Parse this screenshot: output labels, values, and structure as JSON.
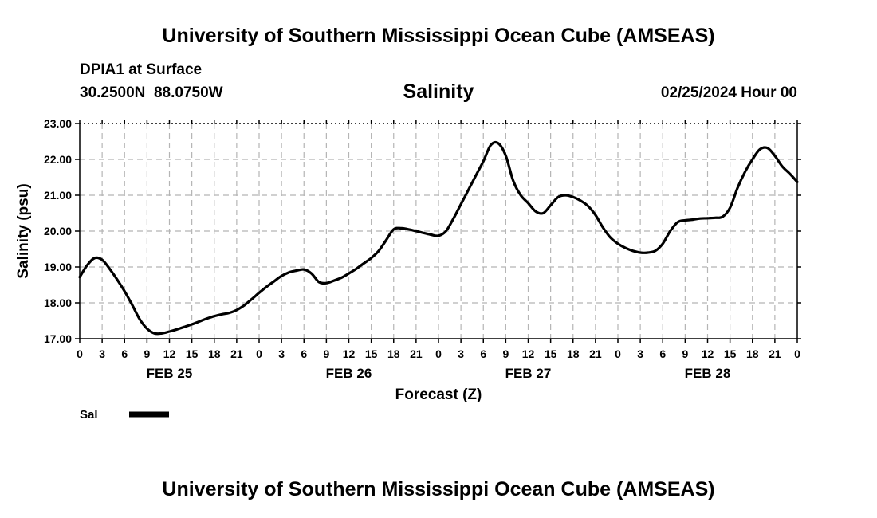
{
  "header": {
    "title": "University of Southern Mississippi Ocean Cube (AMSEAS)",
    "station": "DPIA1 at Surface",
    "latitude": "30.2500N",
    "longitude": "88.0750W",
    "run_time": "02/25/2024 Hour 00"
  },
  "footer": {
    "title": "University of Southern Mississippi Ocean Cube (AMSEAS)"
  },
  "chart_data": {
    "type": "line",
    "title": "Salinity",
    "xlabel": "Forecast (Z)",
    "ylabel": "Salinity (psu)",
    "x_unit": "hours from 02/25/2024 00Z",
    "xlim": [
      0,
      96
    ],
    "ylim": [
      17.0,
      23.0
    ],
    "y_ticks": [
      "17.00",
      "18.00",
      "19.00",
      "20.00",
      "21.00",
      "22.00",
      "23.00"
    ],
    "x_tick_hours": [
      0,
      3,
      6,
      9,
      12,
      15,
      18,
      21,
      24,
      27,
      30,
      33,
      36,
      39,
      42,
      45,
      48,
      51,
      54,
      57,
      60,
      63,
      66,
      69,
      72,
      75,
      78,
      81,
      84,
      87,
      90,
      93,
      96
    ],
    "x_tick_labels": [
      "0",
      "3",
      "6",
      "9",
      "12",
      "15",
      "18",
      "21",
      "0",
      "3",
      "6",
      "9",
      "12",
      "15",
      "18",
      "21",
      "0",
      "3",
      "6",
      "9",
      "12",
      "15",
      "18",
      "21",
      "0",
      "3",
      "6",
      "9",
      "12",
      "15",
      "18",
      "21",
      "0"
    ],
    "day_labels": [
      {
        "label": "FEB 25",
        "hour": 12
      },
      {
        "label": "FEB 26",
        "hour": 36
      },
      {
        "label": "FEB 27",
        "hour": 60
      },
      {
        "label": "FEB 28",
        "hour": 84
      }
    ],
    "grid": true,
    "legend_position": "bottom-left",
    "series": [
      {
        "name": "Sal",
        "color": "#000000",
        "x": [
          0,
          1,
          2,
          3,
          4,
          5,
          6,
          7,
          8,
          9,
          10,
          11,
          12,
          13,
          14,
          15,
          16,
          17,
          18,
          19,
          20,
          21,
          22,
          23,
          24,
          25,
          26,
          27,
          28,
          29,
          30,
          31,
          32,
          33,
          34,
          35,
          36,
          37,
          38,
          39,
          40,
          41,
          42,
          43,
          44,
          45,
          46,
          47,
          48,
          49,
          50,
          51,
          52,
          53,
          54,
          55,
          56,
          57,
          58,
          59,
          60,
          61,
          62,
          63,
          64,
          65,
          66,
          67,
          68,
          69,
          70,
          71,
          72,
          73,
          74,
          75,
          76,
          77,
          78,
          79,
          80,
          81,
          82,
          83,
          84,
          85,
          86,
          87,
          88,
          89,
          90,
          91,
          92,
          93,
          94,
          95,
          96
        ],
        "values": [
          18.72,
          19.05,
          19.25,
          19.2,
          18.95,
          18.65,
          18.32,
          17.95,
          17.55,
          17.28,
          17.15,
          17.15,
          17.2,
          17.26,
          17.33,
          17.4,
          17.48,
          17.56,
          17.63,
          17.68,
          17.72,
          17.8,
          17.93,
          18.1,
          18.28,
          18.45,
          18.6,
          18.75,
          18.85,
          18.9,
          18.93,
          18.82,
          18.58,
          18.55,
          18.62,
          18.7,
          18.82,
          18.95,
          19.1,
          19.25,
          19.45,
          19.75,
          20.05,
          20.08,
          20.05,
          20.0,
          19.95,
          19.9,
          19.87,
          20.0,
          20.35,
          20.75,
          21.15,
          21.55,
          21.95,
          22.4,
          22.45,
          22.1,
          21.4,
          21.0,
          20.78,
          20.55,
          20.5,
          20.72,
          20.95,
          21.0,
          20.95,
          20.85,
          20.7,
          20.45,
          20.1,
          19.82,
          19.65,
          19.53,
          19.45,
          19.4,
          19.4,
          19.45,
          19.65,
          20.0,
          20.25,
          20.3,
          20.32,
          20.35,
          20.36,
          20.37,
          20.4,
          20.65,
          21.2,
          21.65,
          22.0,
          22.28,
          22.32,
          22.1,
          21.8,
          21.6,
          21.37
        ]
      }
    ]
  }
}
